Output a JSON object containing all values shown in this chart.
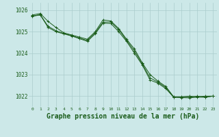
{
  "background_color": "#cce8e8",
  "grid_color": "#aacccc",
  "line_color": "#1a5c1a",
  "marker_color": "#1a5c1a",
  "xlabel": "Graphe pression niveau de la mer (hPa)",
  "xlabel_fontsize": 7.0,
  "tick_label_color": "#1a5c1a",
  "yticks": [
    1022,
    1023,
    1024,
    1025,
    1026
  ],
  "xticks": [
    0,
    1,
    2,
    3,
    4,
    5,
    6,
    7,
    8,
    9,
    10,
    11,
    12,
    13,
    14,
    15,
    16,
    17,
    18,
    19,
    20,
    21,
    22,
    23
  ],
  "ylim": [
    1021.5,
    1026.35
  ],
  "xlim": [
    -0.5,
    23.5
  ],
  "lines": [
    {
      "x": [
        0,
        1,
        2,
        3,
        4,
        5,
        6,
        7,
        8,
        9,
        10,
        11,
        12,
        13,
        14,
        15,
        16,
        17,
        18,
        19,
        20,
        21,
        22,
        23
      ],
      "y": [
        1025.78,
        1025.85,
        1025.48,
        1025.2,
        1024.95,
        1024.85,
        1024.75,
        1024.65,
        1025.0,
        1025.55,
        1025.5,
        1025.15,
        1024.65,
        1024.2,
        1023.55,
        1023.0,
        1022.7,
        1022.45,
        1021.97,
        1021.97,
        1022.0,
        1021.97,
        1022.0,
        1022.0
      ]
    },
    {
      "x": [
        0,
        1,
        2,
        3,
        4,
        5,
        6,
        7,
        8,
        9,
        10,
        11,
        12,
        13,
        14,
        15,
        16,
        17,
        18,
        19,
        20,
        21,
        22,
        23
      ],
      "y": [
        1025.73,
        1025.8,
        1025.25,
        1025.05,
        1024.92,
        1024.82,
        1024.7,
        1024.6,
        1024.95,
        1025.45,
        1025.45,
        1025.1,
        1024.6,
        1024.1,
        1023.5,
        1022.85,
        1022.65,
        1022.4,
        1021.95,
        1021.95,
        1021.95,
        1022.0,
        1021.95,
        1022.0
      ]
    },
    {
      "x": [
        0,
        1,
        2,
        3,
        4,
        5,
        6,
        7,
        8,
        9,
        10,
        11,
        12,
        13,
        14,
        15,
        16,
        17,
        18,
        19,
        20,
        21,
        22,
        23
      ],
      "y": [
        1025.72,
        1025.78,
        1025.2,
        1025.0,
        1024.9,
        1024.8,
        1024.68,
        1024.55,
        1024.9,
        1025.4,
        1025.38,
        1025.0,
        1024.55,
        1024.0,
        1023.45,
        1022.75,
        1022.6,
        1022.35,
        1021.95,
        1021.93,
        1021.92,
        1021.95,
        1021.95,
        1022.0
      ]
    }
  ]
}
